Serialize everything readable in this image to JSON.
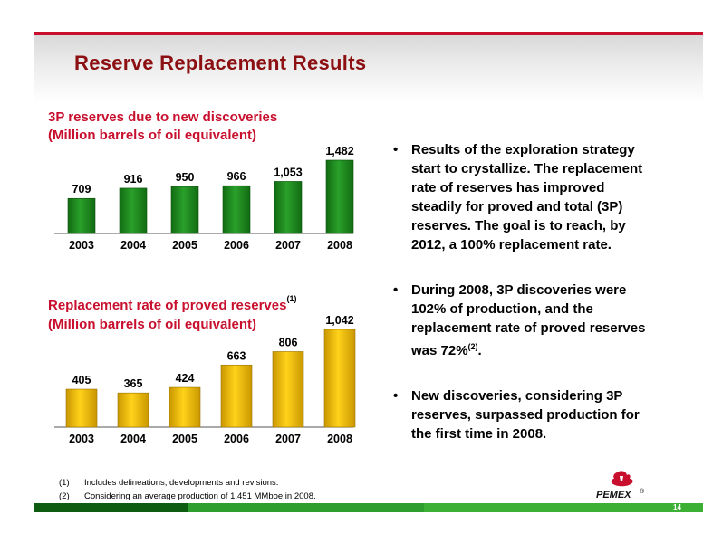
{
  "slide": {
    "title": "Reserve Replacement Results",
    "page_number": "14",
    "logo_text": "PEMEX",
    "logo_reg": "®"
  },
  "chart1": {
    "title_line1": "3P reserves due to new discoveries",
    "title_line2": "(Million barrels of oil equivalent)"
  },
  "chart2": {
    "title_line1": "Replacement rate of proved reserves",
    "title_sup": "(1)",
    "title_line2": "(Million barrels of oil equivalent)"
  },
  "chart_data": [
    {
      "type": "bar",
      "title": "3P reserves due to new discoveries (Million barrels of oil equivalent)",
      "categories": [
        "2003",
        "2004",
        "2005",
        "2006",
        "2007",
        "2008"
      ],
      "values": [
        709,
        916,
        950,
        966,
        1053,
        1482
      ],
      "value_labels": [
        "709",
        "916",
        "950",
        "966",
        "1,053",
        "1,482"
      ],
      "bar_color": "#1f8a1f",
      "ylim": [
        0,
        1482
      ]
    },
    {
      "type": "bar",
      "title": "Replacement rate of proved reserves (1) (Million barrels of oil equivalent)",
      "categories": [
        "2003",
        "2004",
        "2005",
        "2006",
        "2007",
        "2008"
      ],
      "values": [
        405,
        365,
        424,
        663,
        806,
        1042
      ],
      "value_labels": [
        "405",
        "365",
        "424",
        "663",
        "806",
        "1,042"
      ],
      "bar_color": "#e6b800",
      "ylim": [
        0,
        1042
      ]
    }
  ],
  "bullets": {
    "b1": "Results of the exploration strategy start to crystallize. The replacement rate of reserves has improved steadily for proved and total (3P) reserves. The goal is to reach, by 2012, a 100% replacement rate.",
    "b2_text": "During 2008, 3P discoveries were 102% of production, and the replacement rate of proved reserves was 72%",
    "b2_sup": "(2)",
    "b2_end": ".",
    "b3": "New discoveries, considering 3P reserves, surpassed production for the first time in 2008."
  },
  "footnotes": [
    {
      "num": "(1)",
      "text": "Includes delineations, developments and revisions."
    },
    {
      "num": "(2)",
      "text": "Considering an average production of 1.451 MMboe in 2008."
    }
  ]
}
